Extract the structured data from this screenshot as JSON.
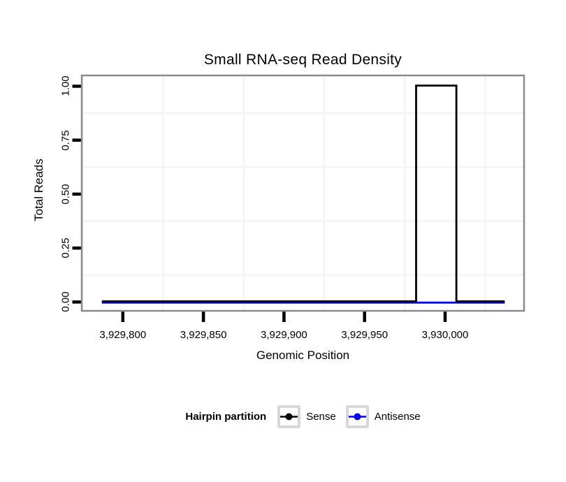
{
  "title": "Small RNA-seq Read Density",
  "axes": {
    "x": {
      "label": "Genomic Position",
      "ticks": [
        "3,929,800",
        "3,929,850",
        "3,929,900",
        "3,929,950",
        "3,930,000"
      ],
      "tick_values": [
        3929800,
        3929850,
        3929900,
        3929950,
        3930000
      ],
      "minor_ticks": [
        3929775,
        3929825,
        3929875,
        3929925,
        3929975,
        3930025
      ],
      "limits": [
        3929774.5,
        3930049.0
      ]
    },
    "y": {
      "label": "Total Reads",
      "ticks": [
        "0.00",
        "0.25",
        "0.50",
        "0.75",
        "1.00"
      ],
      "tick_values": [
        0,
        0.25,
        0.5,
        0.75,
        1
      ],
      "minor_ticks": [
        0.125,
        0.375,
        0.625,
        0.875
      ],
      "limits": [
        -0.041,
        1.05
      ]
    }
  },
  "legend": {
    "title": "Hairpin partition",
    "position": "bottom",
    "items": [
      {
        "label": "Sense",
        "color": "#000000"
      },
      {
        "label": "Antisense",
        "color": "#0000ee"
      }
    ]
  },
  "chart_data": {
    "type": "line",
    "title": "Small RNA-seq Read Density",
    "xlabel": "Genomic Position",
    "ylabel": "Total Reads",
    "xlim": [
      3929787,
      3930037
    ],
    "ylim": [
      0,
      1
    ],
    "grid": "minor-only",
    "legend_title": "Hairpin partition",
    "legend_position": "bottom",
    "series": [
      {
        "name": "Sense",
        "color": "#000000",
        "points": [
          [
            3929787,
            0
          ],
          [
            3929982,
            0
          ],
          [
            3929982,
            1
          ],
          [
            3930007,
            1
          ],
          [
            3930007,
            0
          ],
          [
            3930037,
            0
          ]
        ]
      },
      {
        "name": "Antisense",
        "color": "#0000ee",
        "points": [
          [
            3929787,
            0
          ],
          [
            3930037,
            0
          ]
        ]
      }
    ]
  },
  "colors": {
    "sense": "#000000",
    "antisense": "#0000ee",
    "panel_border": "#8a8a8a",
    "grid_minor": "#f5f5f5",
    "legend_key_border": "#d8d8d8",
    "tick": "#000000"
  }
}
